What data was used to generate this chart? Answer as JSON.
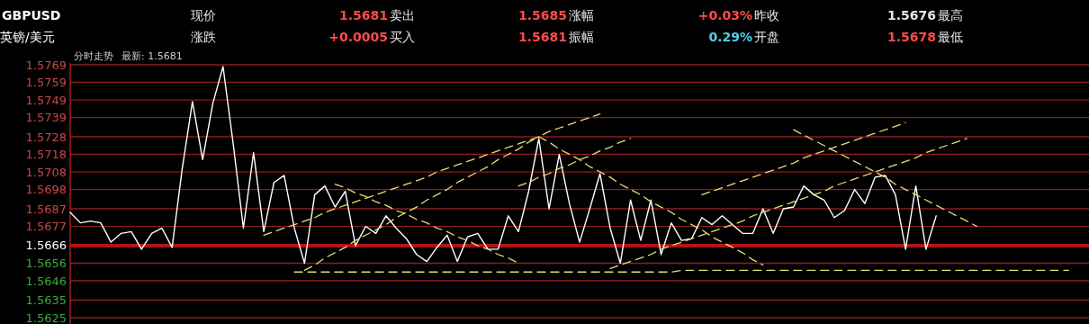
{
  "chart_data": {
    "type": "line",
    "title": "GBPUSD",
    "subtitle": "英镑/美元",
    "annotations": [
      "现价",
      "1.5681",
      "卖出",
      "1.5685",
      "涨幅",
      "+0.03%",
      "昨收",
      "1.5676",
      "最高",
      "涨跌",
      "+0.0005",
      "买入",
      "1.5681",
      "振幅",
      "0.29%",
      "开盘",
      "1.5678",
      "最低",
      "分时走势",
      "最新: 1.5681"
    ],
    "categories": [
      null,
      null,
      null,
      null,
      null,
      null,
      null,
      null,
      null,
      null,
      null,
      null,
      null,
      null,
      null,
      null,
      null,
      null,
      null,
      null,
      null,
      null,
      null,
      null,
      null,
      null,
      null,
      null,
      null,
      null,
      null,
      null,
      null,
      null,
      null,
      null,
      null,
      null,
      null,
      null,
      null,
      null,
      null,
      null,
      null,
      null,
      null,
      null,
      null,
      null,
      null,
      null,
      null,
      null,
      null,
      null,
      null,
      null,
      null,
      null,
      null,
      null,
      null,
      null,
      null,
      null,
      null,
      null,
      null,
      null,
      null,
      null,
      null,
      null,
      null,
      null,
      null,
      null,
      null,
      null,
      null,
      null,
      null,
      null,
      null,
      null,
      null,
      null,
      null,
      null,
      null,
      null,
      null,
      null,
      null,
      null,
      null,
      null,
      null,
      null,
      null
    ],
    "ylim": [
      1.5625,
      1.5769
    ],
    "yticks": [
      1.5769,
      1.5759,
      1.5749,
      1.5739,
      1.5728,
      1.5718,
      1.5708,
      1.5698,
      1.5687,
      1.5677,
      1.5666,
      1.5656,
      1.5646,
      1.5635,
      1.5625
    ],
    "grid": "y",
    "ref_lines": [
      {
        "axis": "y",
        "value": 1.5666,
        "color": "#b01515"
      }
    ],
    "series": [
      {
        "type": "line",
        "color": "#ffffff",
        "line_style": "solid",
        "values": [
          1.5685,
          1.5679,
          1.568,
          1.5679,
          1.5668,
          1.5673,
          1.5674,
          1.5664,
          1.5673,
          1.5676,
          1.5665,
          1.571,
          1.5748,
          1.5715,
          1.5747,
          1.5768,
          1.5724,
          1.5676,
          1.5719,
          1.5674,
          1.5702,
          1.5706,
          1.5676,
          1.5656,
          1.5695,
          1.57,
          1.5688,
          1.5697,
          1.5666,
          1.5677,
          1.5673,
          1.5683,
          1.5676,
          1.567,
          1.5661,
          1.5657,
          1.5665,
          1.5672,
          1.5657,
          1.5671,
          1.5673,
          1.5664,
          1.5664,
          1.5683,
          1.5674,
          1.5697,
          1.5727,
          1.5687,
          1.5718,
          1.569,
          1.5668,
          1.5687,
          1.5707,
          1.5676,
          1.5656,
          1.5692,
          1.5669,
          1.5692,
          1.5661,
          1.5679,
          1.5669,
          1.567,
          1.5682,
          1.5678,
          1.5683,
          1.5678,
          1.5673,
          1.5673,
          1.5687,
          1.5673,
          1.5687,
          1.5688,
          1.57,
          1.5695,
          1.5692,
          1.5682,
          1.5686,
          1.5698,
          1.569,
          1.5705,
          1.5706,
          1.5695,
          1.5664,
          1.57,
          1.5664,
          1.5683,
          null,
          null,
          null,
          null,
          null,
          null,
          null,
          null,
          null,
          null,
          null,
          null,
          null,
          null,
          null
        ]
      },
      {
        "type": "line",
        "color": "#e8dc78",
        "line_style": "dashed",
        "values": [
          null,
          null,
          null,
          null,
          null,
          null,
          null,
          null,
          null,
          null,
          null,
          null,
          null,
          null,
          null,
          null,
          null,
          null,
          null,
          1.5672,
          1.5674,
          1.5676,
          1.5678,
          1.568,
          1.5682,
          1.5685,
          1.5687,
          1.5689,
          1.5691,
          1.5693,
          1.5695,
          1.5697,
          1.5699,
          1.5701,
          1.5703,
          1.5705,
          1.5708,
          1.571,
          1.5712,
          1.5714,
          1.5716,
          1.5718,
          1.572,
          1.5722,
          1.5724,
          1.5726,
          1.5728,
          1.5731,
          1.5733,
          1.5735,
          1.5737,
          1.5739,
          1.5741,
          null,
          null,
          null,
          null,
          null,
          null,
          null,
          null,
          null,
          null,
          null,
          null,
          null,
          null,
          null,
          null,
          null,
          null,
          null,
          null,
          null,
          null,
          null,
          null,
          null,
          null,
          null,
          null,
          null,
          null,
          null,
          null,
          null,
          null,
          null,
          null,
          null,
          null,
          null,
          null,
          null,
          null,
          null,
          null,
          null,
          null,
          null,
          null
        ]
      },
      {
        "type": "line",
        "color": "#e8dc78",
        "line_style": "dashed",
        "values": [
          null,
          null,
          null,
          null,
          null,
          null,
          null,
          null,
          null,
          null,
          null,
          null,
          null,
          null,
          null,
          null,
          null,
          null,
          null,
          null,
          null,
          null,
          null,
          1.5652,
          1.5655,
          1.5659,
          1.5662,
          1.5665,
          1.5669,
          1.5672,
          1.5675,
          1.5678,
          1.5682,
          1.5685,
          1.5688,
          1.5692,
          1.5695,
          1.5698,
          1.5702,
          1.5705,
          1.5708,
          1.5711,
          1.5715,
          1.5718,
          1.5721,
          1.5725,
          1.5728,
          null,
          null,
          null,
          null,
          null,
          null,
          null,
          null,
          null,
          null,
          null,
          null,
          null,
          null,
          null,
          null,
          null,
          null,
          null,
          null,
          null,
          null,
          null,
          null,
          null,
          null,
          null,
          null,
          null,
          null,
          null,
          null,
          null,
          null,
          null,
          null,
          null,
          null,
          null,
          null,
          null,
          null,
          null,
          null,
          null,
          null,
          null,
          null,
          null,
          null,
          null,
          null,
          null,
          null
        ]
      },
      {
        "type": "line",
        "color": "#e8dc78",
        "line_style": "dashed",
        "values": [
          null,
          null,
          null,
          null,
          null,
          null,
          null,
          null,
          null,
          null,
          null,
          null,
          null,
          null,
          null,
          null,
          null,
          null,
          null,
          null,
          null,
          null,
          null,
          null,
          null,
          null,
          1.5701,
          1.5699,
          1.5696,
          1.5694,
          1.5691,
          1.5689,
          1.5686,
          1.5684,
          1.5681,
          1.5679,
          1.5676,
          1.5674,
          1.5671,
          1.5669,
          1.5666,
          1.5664,
          1.5661,
          1.5659,
          1.5656,
          null,
          null,
          null,
          null,
          null,
          null,
          null,
          null,
          null,
          null,
          null,
          null,
          null,
          null,
          null,
          null,
          null,
          null,
          null,
          null,
          null,
          null,
          null,
          null,
          null,
          null,
          null,
          null,
          null,
          null,
          null,
          null,
          null,
          null,
          null,
          null,
          null,
          null,
          null,
          null,
          null,
          null,
          null,
          null,
          null,
          null,
          null,
          null,
          null,
          null,
          null,
          null,
          null,
          null,
          null,
          null
        ]
      },
      {
        "type": "line",
        "color": "#e8dc78",
        "line_style": "dashed",
        "values": [
          null,
          null,
          null,
          null,
          null,
          null,
          null,
          null,
          null,
          null,
          null,
          null,
          null,
          null,
          null,
          null,
          null,
          null,
          null,
          null,
          null,
          null,
          null,
          null,
          null,
          null,
          null,
          null,
          null,
          null,
          null,
          null,
          null,
          null,
          null,
          null,
          null,
          null,
          null,
          null,
          null,
          null,
          null,
          null,
          null,
          null,
          1.5728,
          1.5725,
          1.5721,
          1.5718,
          1.5715,
          1.5711,
          1.5708,
          1.5705,
          1.5701,
          1.5698,
          1.5695,
          1.5691,
          1.5688,
          1.5685,
          1.5681,
          1.5678,
          1.5675,
          1.5671,
          1.5668,
          1.5665,
          1.5662,
          1.5658,
          1.5655,
          null,
          null,
          null,
          null,
          null,
          null,
          null,
          null,
          null,
          null,
          null,
          null,
          null,
          null,
          null,
          null,
          null,
          null,
          null,
          null,
          null,
          null,
          null,
          null,
          null,
          null,
          null,
          null,
          null,
          null,
          null,
          null
        ]
      },
      {
        "type": "line",
        "color": "#e8dc78",
        "line_style": "dashed",
        "values": [
          null,
          null,
          null,
          null,
          null,
          null,
          null,
          null,
          null,
          null,
          null,
          null,
          null,
          null,
          null,
          null,
          null,
          null,
          null,
          null,
          null,
          null,
          null,
          null,
          null,
          null,
          null,
          null,
          null,
          null,
          null,
          null,
          null,
          null,
          null,
          null,
          null,
          null,
          null,
          null,
          null,
          null,
          null,
          null,
          null,
          null,
          null,
          null,
          null,
          null,
          null,
          null,
          null,
          1.5653,
          1.5655,
          1.5657,
          1.5659,
          1.5661,
          1.5664,
          1.5666,
          1.5668,
          1.567,
          1.5672,
          1.5674,
          1.5676,
          1.5678,
          1.568,
          1.5683,
          1.5685,
          1.5687,
          1.5689,
          1.5691,
          1.5693,
          1.5695,
          1.5697,
          1.57,
          1.5702,
          1.5704,
          1.5706,
          1.5708,
          1.571,
          1.5712,
          1.5714,
          1.5716,
          1.5719,
          1.5721,
          1.5723,
          1.5725,
          1.5727,
          null,
          null,
          null,
          null,
          null,
          null,
          null,
          null,
          null,
          null,
          null,
          null
        ]
      },
      {
        "type": "line",
        "color": "#e8dc78",
        "line_style": "dashed",
        "values": [
          null,
          null,
          null,
          null,
          null,
          null,
          null,
          null,
          null,
          null,
          null,
          null,
          null,
          null,
          null,
          null,
          null,
          null,
          null,
          null,
          null,
          null,
          null,
          null,
          null,
          null,
          null,
          null,
          null,
          null,
          null,
          null,
          null,
          null,
          null,
          null,
          null,
          null,
          null,
          null,
          null,
          null,
          null,
          null,
          1.57,
          1.5702,
          1.5705,
          1.5707,
          1.571,
          1.5712,
          1.5715,
          1.5717,
          1.572,
          1.5722,
          1.5725,
          1.5727,
          null,
          null,
          null,
          null,
          null,
          null,
          null,
          null,
          null,
          null,
          null,
          null,
          null,
          null,
          null,
          null,
          null,
          null,
          null,
          null,
          null,
          null,
          null,
          null,
          null,
          null,
          null,
          null,
          null,
          null,
          null,
          null,
          null,
          null,
          null,
          null,
          null,
          null,
          null,
          null,
          null,
          null,
          null,
          null,
          null
        ]
      },
      {
        "type": "line",
        "color": "#e8dc78",
        "line_style": "dashed",
        "values": [
          null,
          null,
          null,
          null,
          null,
          null,
          null,
          null,
          null,
          null,
          null,
          null,
          null,
          null,
          null,
          null,
          null,
          null,
          null,
          null,
          null,
          null,
          null,
          null,
          null,
          null,
          null,
          null,
          null,
          null,
          null,
          null,
          null,
          null,
          null,
          null,
          null,
          null,
          null,
          null,
          null,
          null,
          null,
          null,
          null,
          null,
          null,
          null,
          null,
          null,
          null,
          null,
          null,
          null,
          null,
          null,
          null,
          null,
          null,
          null,
          null,
          null,
          1.5695,
          1.5697,
          1.5699,
          1.5701,
          1.5703,
          1.5705,
          1.5707,
          1.5709,
          1.5711,
          1.5713,
          1.5716,
          1.5718,
          1.572,
          1.5722,
          1.5724,
          1.5726,
          1.5728,
          1.573,
          1.5732,
          1.5734,
          1.5736,
          null,
          null,
          null,
          null,
          null,
          null,
          null,
          null,
          null,
          null,
          null,
          null,
          null,
          null,
          null,
          null,
          null,
          null
        ]
      },
      {
        "type": "line",
        "color": "#e8dc78",
        "line_style": "dashed",
        "values": [
          null,
          null,
          null,
          null,
          null,
          null,
          null,
          null,
          null,
          null,
          null,
          null,
          null,
          null,
          null,
          null,
          null,
          null,
          null,
          null,
          null,
          null,
          null,
          null,
          null,
          null,
          null,
          null,
          null,
          null,
          null,
          null,
          null,
          null,
          null,
          null,
          null,
          null,
          null,
          null,
          null,
          null,
          null,
          null,
          null,
          null,
          null,
          null,
          null,
          null,
          null,
          null,
          null,
          null,
          null,
          null,
          null,
          null,
          null,
          null,
          null,
          null,
          null,
          null,
          null,
          null,
          null,
          null,
          null,
          null,
          null,
          1.5732,
          1.5729,
          1.5726,
          1.5723,
          1.572,
          1.5717,
          1.5714,
          1.5711,
          1.5708,
          1.5705,
          1.5701,
          1.5698,
          1.5695,
          1.5692,
          1.5689,
          1.5686,
          1.5683,
          1.568,
          1.5677,
          null,
          null,
          null,
          null,
          null,
          null,
          null,
          null,
          null,
          null,
          null
        ]
      },
      {
        "type": "line",
        "color": "#e8dc78",
        "line_style": "dashed",
        "values": [
          null,
          null,
          null,
          null,
          null,
          null,
          null,
          null,
          null,
          null,
          null,
          null,
          null,
          null,
          null,
          null,
          null,
          null,
          null,
          null,
          null,
          null,
          1.5651,
          1.5651,
          1.5651,
          1.5651,
          1.5651,
          1.5651,
          1.5651,
          1.5651,
          1.5651,
          1.5651,
          1.5651,
          1.5651,
          1.5651,
          1.5651,
          1.5651,
          1.5651,
          1.5651,
          1.5651,
          1.5651,
          1.5651,
          1.5651,
          1.5651,
          1.5651,
          1.5651,
          1.5651,
          1.5651,
          1.5651,
          1.5651,
          1.5651,
          1.5651,
          1.5651,
          1.5651,
          1.5651,
          1.5651,
          1.5651,
          1.5651,
          1.5651,
          1.5651,
          1.5652,
          1.5652,
          1.5652,
          1.5652,
          1.5652,
          1.5652,
          1.5652,
          1.5652,
          1.5652,
          1.5652,
          1.5652,
          1.5652,
          1.5652,
          1.5652,
          1.5652,
          1.5652,
          1.5652,
          1.5652,
          1.5652,
          1.5652,
          1.5652,
          1.5652,
          1.5652,
          1.5652,
          1.5652,
          1.5652,
          1.5652,
          1.5652,
          1.5652,
          1.5652,
          1.5652,
          1.5652,
          1.5652,
          1.5652,
          1.5652,
          1.5652,
          1.5652,
          1.5652,
          1.5652,
          null,
          null
        ]
      }
    ]
  }
}
